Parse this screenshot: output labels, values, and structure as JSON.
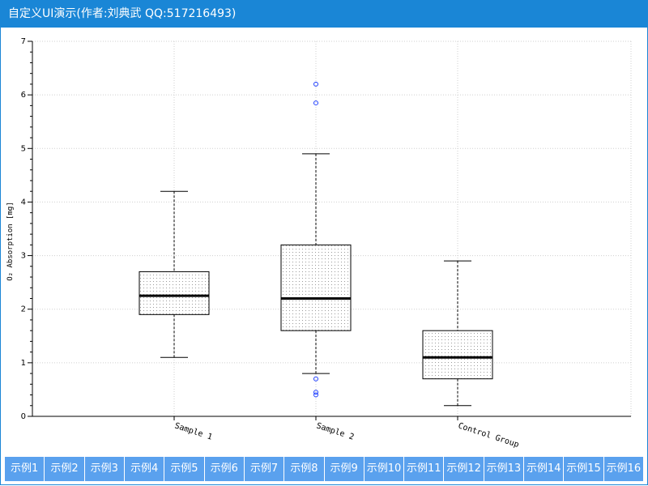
{
  "window": {
    "title": "自定义UI演示(作者:刘典武 QQ:517216493)"
  },
  "tabs": [
    "示例1",
    "示例2",
    "示例3",
    "示例4",
    "示例5",
    "示例6",
    "示例7",
    "示例8",
    "示例9",
    "示例10",
    "示例11",
    "示例12",
    "示例13",
    "示例14",
    "示例15",
    "示例16"
  ],
  "colors": {
    "accent": "#1a86d6",
    "tab_bg": "#5aa1ee",
    "outlier": "#1f3fff"
  },
  "chart_data": {
    "type": "boxplot",
    "ylabel": "O₂ Absorption [mg]",
    "ylim": [
      0,
      7
    ],
    "yticks": [
      0,
      1,
      2,
      3,
      4,
      5,
      6,
      7
    ],
    "grid": true,
    "categories": [
      "Sample 1",
      "Sample 2",
      "Control Group"
    ],
    "boxes": [
      {
        "min": 1.1,
        "q1": 1.9,
        "median": 2.25,
        "q3": 2.7,
        "max": 4.2,
        "outliers": []
      },
      {
        "min": 0.8,
        "q1": 1.6,
        "median": 2.2,
        "q3": 3.2,
        "max": 4.9,
        "outliers": [
          6.2,
          5.85,
          0.7,
          0.45,
          0.4
        ]
      },
      {
        "min": 0.2,
        "q1": 0.7,
        "median": 1.1,
        "q3": 1.6,
        "max": 2.9,
        "outliers": []
      }
    ]
  }
}
